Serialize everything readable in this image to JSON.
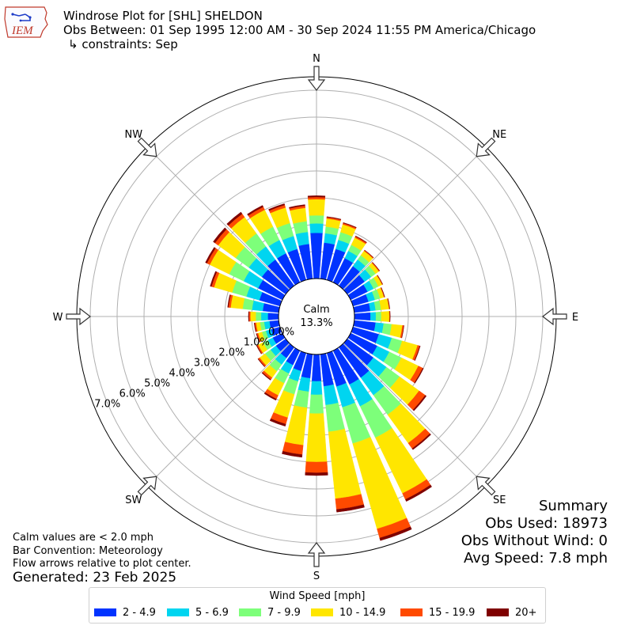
{
  "header": {
    "logo_text": "IEM",
    "title": "Windrose Plot for [SHL] SHELDON",
    "subtitle": "Obs Between: 01 Sep 1995 12:00 AM - 30 Sep 2024 11:55 PM America/Chicago",
    "constraints": "↳ constraints: Sep"
  },
  "notes": {
    "calm_def": "Calm values are < 2.0 mph",
    "bar_convention": "Bar Convention: Meteorology",
    "flow_arrows": "Flow arrows relative to plot center.",
    "generated": "Generated: 23 Feb 2025"
  },
  "summary": {
    "title": "Summary",
    "obs_used": "Obs Used: 18973",
    "obs_without_wind": "Obs Without Wind: 0",
    "avg_speed": "Avg Speed: 7.8 mph"
  },
  "legend": {
    "title": "Wind Speed [mph]",
    "items": [
      {
        "label": "2 - 4.9",
        "color": "#0033ff"
      },
      {
        "label": "5 - 6.9",
        "color": "#00d5f0"
      },
      {
        "label": "7 - 9.9",
        "color": "#7dff7a"
      },
      {
        "label": "10 - 14.9",
        "color": "#ffe600"
      },
      {
        "label": "15 - 19.9",
        "color": "#ff4a00"
      },
      {
        "label": "20+",
        "color": "#7f0000"
      }
    ]
  },
  "chart_data": {
    "type": "windrose",
    "calm_label": "Calm",
    "calm_value": "13.3%",
    "directions": [
      "N",
      "NE",
      "E",
      "SE",
      "S",
      "SW",
      "W",
      "NW"
    ],
    "radial_labels": [
      "0.0%",
      "1.0%",
      "2.0%",
      "3.0%",
      "4.0%",
      "5.0%",
      "6.0%",
      "7.0%"
    ],
    "r_max_percent": 7.5,
    "grid": true,
    "legend_position": "bottom",
    "speed_bins": [
      "2 - 4.9",
      "5 - 6.9",
      "7 - 9.9",
      "10 - 14.9",
      "15 - 19.9",
      "20+"
    ],
    "bars": [
      {
        "dir": 0,
        "values": [
          1.7,
          0.35,
          0.3,
          0.6,
          0.08,
          0.05
        ]
      },
      {
        "dir": 10,
        "values": [
          1.35,
          0.35,
          0.25,
          0.3,
          0.05,
          0.02
        ]
      },
      {
        "dir": 20,
        "values": [
          1.2,
          0.35,
          0.3,
          0.3,
          0.05,
          0.02
        ]
      },
      {
        "dir": 30,
        "values": [
          1.0,
          0.3,
          0.25,
          0.3,
          0.05,
          0.02
        ]
      },
      {
        "dir": 40,
        "values": [
          0.9,
          0.3,
          0.2,
          0.2,
          0.03,
          0.01
        ]
      },
      {
        "dir": 50,
        "values": [
          0.8,
          0.3,
          0.2,
          0.15,
          0.03,
          0.01
        ]
      },
      {
        "dir": 60,
        "values": [
          0.7,
          0.25,
          0.2,
          0.15,
          0.02,
          0.01
        ]
      },
      {
        "dir": 70,
        "values": [
          0.6,
          0.25,
          0.2,
          0.15,
          0.02,
          0.01
        ]
      },
      {
        "dir": 80,
        "values": [
          0.6,
          0.2,
          0.2,
          0.3,
          0.02,
          0.01
        ]
      },
      {
        "dir": 90,
        "values": [
          0.6,
          0.2,
          0.2,
          0.3,
          0.02,
          0.01
        ]
      },
      {
        "dir": 100,
        "values": [
          0.8,
          0.3,
          0.3,
          0.4,
          0.05,
          0.01
        ]
      },
      {
        "dir": 110,
        "values": [
          1.0,
          0.5,
          0.4,
          0.6,
          0.08,
          0.02
        ]
      },
      {
        "dir": 120,
        "values": [
          1.1,
          0.5,
          0.5,
          0.7,
          0.18,
          0.03
        ]
      },
      {
        "dir": 130,
        "values": [
          1.2,
          0.6,
          0.6,
          0.9,
          0.28,
          0.05
        ]
      },
      {
        "dir": 140,
        "values": [
          1.4,
          0.8,
          0.9,
          1.3,
          0.25,
          0.05
        ]
      },
      {
        "dir": 150,
        "values": [
          1.4,
          0.9,
          1.3,
          2.3,
          0.25,
          0.08
        ]
      },
      {
        "dir": 160,
        "values": [
          1.3,
          0.8,
          1.4,
          3.3,
          0.35,
          0.1
        ]
      },
      {
        "dir": 170,
        "values": [
          1.2,
          0.7,
          1.0,
          2.5,
          0.4,
          0.1
        ]
      },
      {
        "dir": 180,
        "values": [
          1.0,
          0.5,
          0.7,
          1.8,
          0.4,
          0.1
        ]
      },
      {
        "dir": 190,
        "values": [
          0.9,
          0.5,
          0.6,
          1.4,
          0.35,
          0.1
        ]
      },
      {
        "dir": 200,
        "values": [
          0.7,
          0.4,
          0.5,
          0.9,
          0.25,
          0.08
        ]
      },
      {
        "dir": 210,
        "values": [
          0.6,
          0.35,
          0.4,
          0.5,
          0.15,
          0.05
        ]
      },
      {
        "dir": 220,
        "values": [
          0.5,
          0.3,
          0.3,
          0.3,
          0.08,
          0.03
        ]
      },
      {
        "dir": 230,
        "values": [
          0.45,
          0.25,
          0.25,
          0.25,
          0.06,
          0.02
        ]
      },
      {
        "dir": 240,
        "values": [
          0.4,
          0.2,
          0.2,
          0.2,
          0.05,
          0.02
        ]
      },
      {
        "dir": 250,
        "values": [
          0.35,
          0.2,
          0.15,
          0.15,
          0.05,
          0.02
        ]
      },
      {
        "dir": 260,
        "values": [
          0.35,
          0.2,
          0.15,
          0.15,
          0.05,
          0.02
        ]
      },
      {
        "dir": 270,
        "values": [
          0.4,
          0.25,
          0.2,
          0.2,
          0.05,
          0.02
        ]
      },
      {
        "dir": 280,
        "values": [
          0.6,
          0.4,
          0.35,
          0.45,
          0.08,
          0.03
        ]
      },
      {
        "dir": 290,
        "values": [
          0.8,
          0.5,
          0.55,
          0.7,
          0.1,
          0.05
        ]
      },
      {
        "dir": 300,
        "values": [
          1.0,
          0.6,
          0.6,
          0.8,
          0.12,
          0.06
        ]
      },
      {
        "dir": 310,
        "values": [
          1.1,
          0.6,
          0.6,
          0.8,
          0.15,
          0.08
        ]
      },
      {
        "dir": 320,
        "values": [
          1.2,
          0.6,
          0.6,
          0.75,
          0.15,
          0.08
        ]
      },
      {
        "dir": 330,
        "values": [
          1.2,
          0.55,
          0.55,
          0.7,
          0.12,
          0.06
        ]
      },
      {
        "dir": 340,
        "values": [
          1.2,
          0.5,
          0.5,
          0.6,
          0.1,
          0.05
        ]
      },
      {
        "dir": 350,
        "values": [
          1.3,
          0.45,
          0.4,
          0.5,
          0.08,
          0.04
        ]
      }
    ]
  }
}
